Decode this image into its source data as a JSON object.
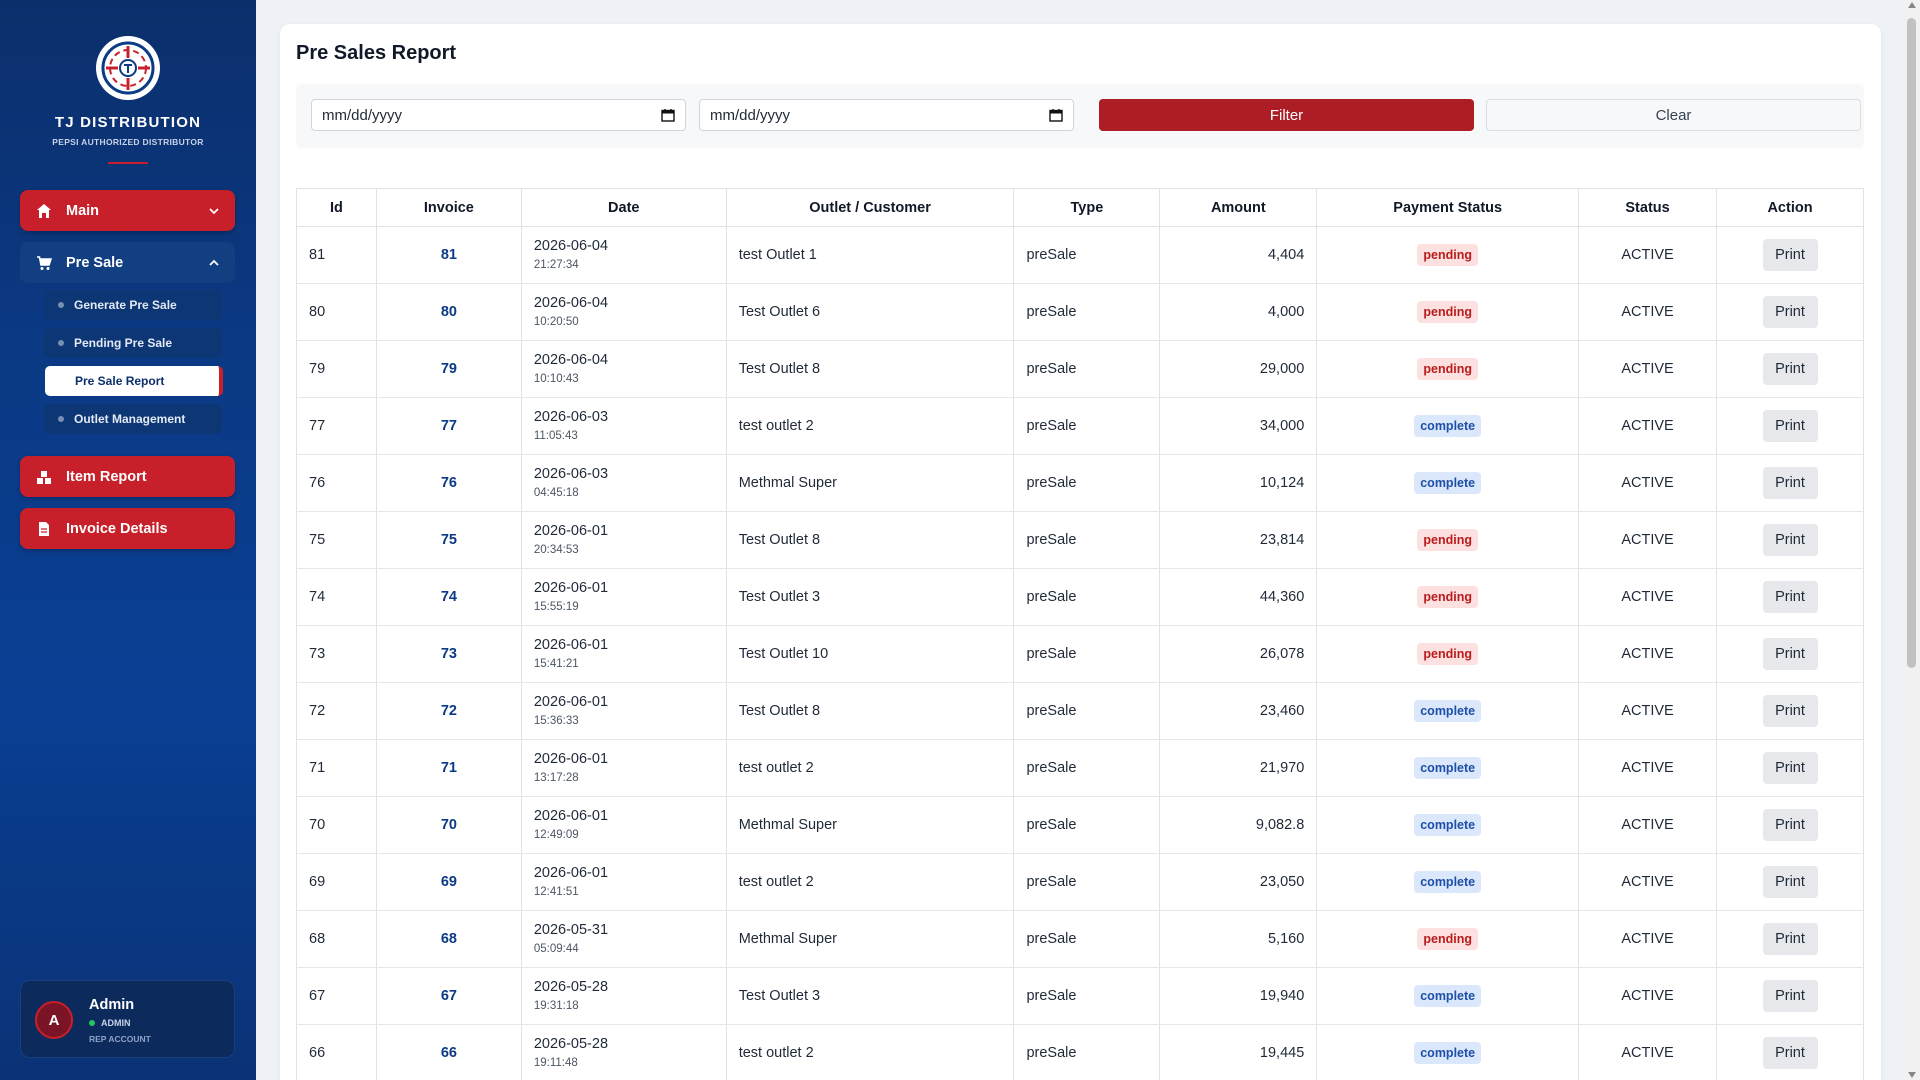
{
  "brand": {
    "name": "TJ DISTRIBUTION",
    "subtitle": "PEPSI AUTHORIZED DISTRIBUTOR"
  },
  "sidebar": {
    "main_label": "Main",
    "presale_label": "Pre Sale",
    "presale_items": [
      "Generate Pre Sale",
      "Pending Pre Sale",
      "Pre Sale Report",
      "Outlet Management"
    ],
    "item_report_label": "Item Report",
    "invoice_details_label": "Invoice Details"
  },
  "user": {
    "initial": "A",
    "name": "Admin",
    "role": "ADMIN",
    "account": "REP ACCOUNT"
  },
  "page": {
    "title": "Pre Sales Report"
  },
  "filters": {
    "from_placeholder": "mm/dd/yyyy",
    "to_placeholder": "mm/dd/yyyy",
    "filter_label": "Filter",
    "clear_label": "Clear"
  },
  "table": {
    "headers": [
      "Id",
      "Invoice",
      "Date",
      "Outlet / Customer",
      "Type",
      "Amount",
      "Payment Status",
      "Status",
      "Action"
    ],
    "print_label": "Print",
    "rows": [
      {
        "id": "81",
        "invoice": "81",
        "date": "2026-06-04",
        "time": "21:27:34",
        "outlet": "test Outlet 1",
        "type": "preSale",
        "amount": "4,404",
        "payment": "pending",
        "status": "ACTIVE"
      },
      {
        "id": "80",
        "invoice": "80",
        "date": "2026-06-04",
        "time": "10:20:50",
        "outlet": "Test Outlet 6",
        "type": "preSale",
        "amount": "4,000",
        "payment": "pending",
        "status": "ACTIVE"
      },
      {
        "id": "79",
        "invoice": "79",
        "date": "2026-06-04",
        "time": "10:10:43",
        "outlet": "Test Outlet 8",
        "type": "preSale",
        "amount": "29,000",
        "payment": "pending",
        "status": "ACTIVE"
      },
      {
        "id": "77",
        "invoice": "77",
        "date": "2026-06-03",
        "time": "11:05:43",
        "outlet": "test outlet 2",
        "type": "preSale",
        "amount": "34,000",
        "payment": "complete",
        "status": "ACTIVE"
      },
      {
        "id": "76",
        "invoice": "76",
        "date": "2026-06-03",
        "time": "04:45:18",
        "outlet": "Methmal Super",
        "type": "preSale",
        "amount": "10,124",
        "payment": "complete",
        "status": "ACTIVE"
      },
      {
        "id": "75",
        "invoice": "75",
        "date": "2026-06-01",
        "time": "20:34:53",
        "outlet": "Test Outlet 8",
        "type": "preSale",
        "amount": "23,814",
        "payment": "pending",
        "status": "ACTIVE"
      },
      {
        "id": "74",
        "invoice": "74",
        "date": "2026-06-01",
        "time": "15:55:19",
        "outlet": "Test Outlet 3",
        "type": "preSale",
        "amount": "44,360",
        "payment": "pending",
        "status": "ACTIVE"
      },
      {
        "id": "73",
        "invoice": "73",
        "date": "2026-06-01",
        "time": "15:41:21",
        "outlet": "Test Outlet 10",
        "type": "preSale",
        "amount": "26,078",
        "payment": "pending",
        "status": "ACTIVE"
      },
      {
        "id": "72",
        "invoice": "72",
        "date": "2026-06-01",
        "time": "15:36:33",
        "outlet": "Test Outlet 8",
        "type": "preSale",
        "amount": "23,460",
        "payment": "complete",
        "status": "ACTIVE"
      },
      {
        "id": "71",
        "invoice": "71",
        "date": "2026-06-01",
        "time": "13:17:28",
        "outlet": "test outlet 2",
        "type": "preSale",
        "amount": "21,970",
        "payment": "complete",
        "status": "ACTIVE"
      },
      {
        "id": "70",
        "invoice": "70",
        "date": "2026-06-01",
        "time": "12:49:09",
        "outlet": "Methmal Super",
        "type": "preSale",
        "amount": "9,082.8",
        "payment": "complete",
        "status": "ACTIVE"
      },
      {
        "id": "69",
        "invoice": "69",
        "date": "2026-06-01",
        "time": "12:41:51",
        "outlet": "test outlet 2",
        "type": "preSale",
        "amount": "23,050",
        "payment": "complete",
        "status": "ACTIVE"
      },
      {
        "id": "68",
        "invoice": "68",
        "date": "2026-05-31",
        "time": "05:09:44",
        "outlet": "Methmal Super",
        "type": "preSale",
        "amount": "5,160",
        "payment": "pending",
        "status": "ACTIVE"
      },
      {
        "id": "67",
        "invoice": "67",
        "date": "2026-05-28",
        "time": "19:31:18",
        "outlet": "Test Outlet 3",
        "type": "preSale",
        "amount": "19,940",
        "payment": "complete",
        "status": "ACTIVE"
      },
      {
        "id": "66",
        "invoice": "66",
        "date": "2026-05-28",
        "time": "19:11:48",
        "outlet": "test outlet 2",
        "type": "preSale",
        "amount": "19,445",
        "payment": "complete",
        "status": "ACTIVE"
      }
    ]
  },
  "icons": {
    "main": "home-icon",
    "presale": "cart-icon",
    "item_report": "boxes-icon",
    "invoice_details": "document-icon"
  },
  "colors": {
    "accent_red": "#c8202a",
    "sidebar_blue": "#0b3a86",
    "pending": "#b91c1c",
    "complete": "#1e4fa8"
  }
}
